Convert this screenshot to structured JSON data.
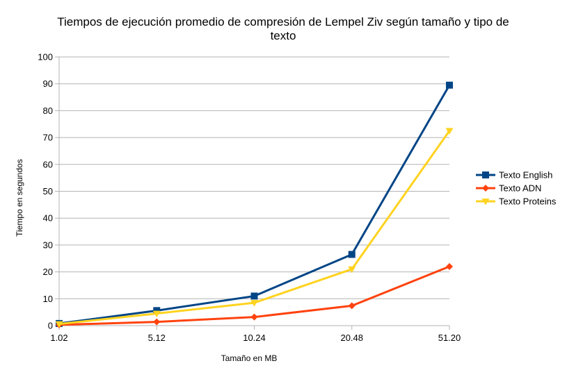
{
  "chart_data": {
    "type": "line",
    "title_line1": "Tiempos de ejecución promedio de compresión de Lempel Ziv según tamaño y tipo de",
    "title_line2": "texto",
    "xlabel": "Tamaño en MB",
    "ylabel": "Tiempo en segundos",
    "categories": [
      "1.02",
      "5.12",
      "10.24",
      "20.48",
      "51.20"
    ],
    "ylim": [
      0,
      100
    ],
    "yticks": [
      "0",
      "10",
      "20",
      "30",
      "40",
      "50",
      "60",
      "70",
      "80",
      "90",
      "100"
    ],
    "grid": true,
    "legend_position": "right",
    "series": [
      {
        "name": "Texto English",
        "values": [
          0.8,
          5.6,
          11.0,
          26.5,
          89.5
        ],
        "color": "#004586",
        "marker": "square"
      },
      {
        "name": "Texto ADN",
        "values": [
          0.3,
          1.4,
          3.2,
          7.4,
          22.0
        ],
        "color": "#ff420e",
        "marker": "diamond"
      },
      {
        "name": "Texto Proteins",
        "values": [
          0.6,
          4.5,
          8.5,
          21.0,
          72.5
        ],
        "color": "#ffd320",
        "marker": "triangle-down"
      }
    ]
  }
}
